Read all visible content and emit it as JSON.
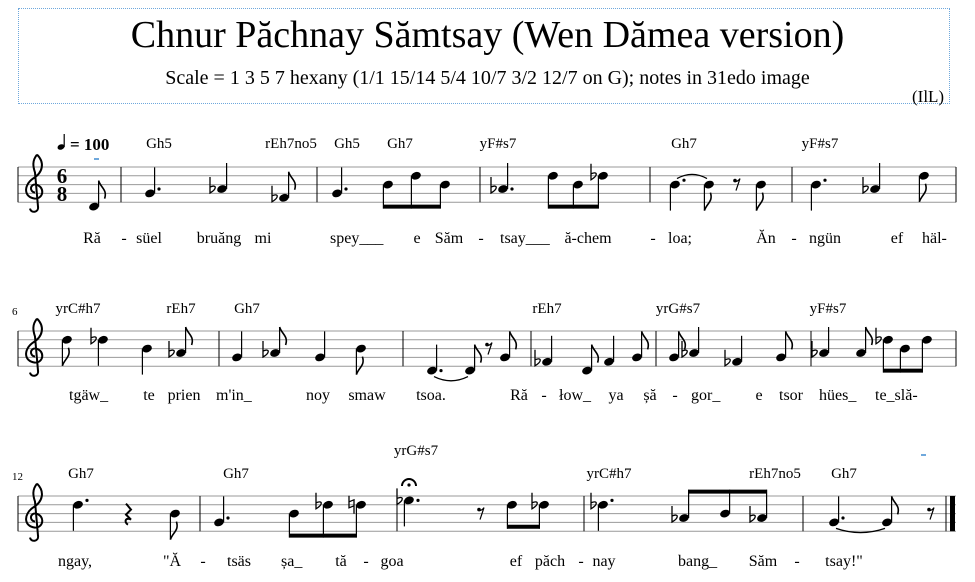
{
  "header": {
    "title": "Chnur Păchnay Sămtsay (Wen Dămea version)",
    "subtitle": "Scale = 1 3 5 7 hexany (1/1 15/14 5/4 10/7 3/2 12/7 on G); notes in 31edo image",
    "composer": "(IlL)"
  },
  "tempo": {
    "beat_icon": "quarter-note",
    "text": "= 100"
  },
  "time_signature": {
    "numerator": "6",
    "denominator": "8"
  },
  "clef": "treble",
  "colors": {
    "frame": "#6fa8dc",
    "ink": "#000000"
  },
  "systems": [
    {
      "measure_number": "",
      "chords": [
        "Gh5",
        "rEh7no5",
        "Gh5",
        "Gh7",
        "yF#s7",
        "Gh7",
        "yF#s7"
      ],
      "lyrics": [
        "Ră",
        "-",
        "süel",
        "bruăng",
        "mi",
        "spey___",
        "e",
        "Săm",
        "-",
        "tsay___",
        "ă-chem",
        "-",
        "loa;",
        "Ăn",
        "-",
        "ngün",
        "ef",
        "häl-"
      ],
      "notes": [
        {
          "p": "D4",
          "d": "8"
        },
        {
          "p": "G4",
          "d": "4.",
          "m": "dot"
        },
        {
          "p": "Ab4",
          "d": "4"
        },
        {
          "p": "Fb4",
          "d": "8"
        },
        {
          "p": "G4",
          "d": "4."
        },
        {
          "p": "B4",
          "d": "8"
        },
        {
          "p": "D5",
          "d": "8"
        },
        {
          "p": "B4",
          "d": "8"
        },
        {
          "p": "Ab4",
          "d": "4."
        },
        {
          "p": "D5",
          "d": "8"
        },
        {
          "p": "B4",
          "d": "8"
        },
        {
          "p": "Db5",
          "d": "8"
        },
        {
          "p": "B4",
          "d": "4."
        },
        {
          "p": "B4",
          "d": "8"
        },
        {
          "p": "rest",
          "d": "8"
        },
        {
          "p": "B4",
          "d": "8"
        },
        {
          "p": "B4",
          "d": "4."
        },
        {
          "p": "Ab4",
          "d": "4"
        },
        {
          "p": "D5",
          "d": "8"
        }
      ]
    },
    {
      "measure_number": "6",
      "chords": [
        "yrC#h7",
        "rEh7",
        "Gh7",
        "rEh7",
        "yrG#s7",
        "yF#s7"
      ],
      "lyrics": [
        "tgäw_",
        "te",
        "prien",
        "m'in_",
        "noy",
        "smaw",
        "tsoa.",
        "Ră",
        "-",
        "łow_",
        "ya",
        "șă",
        "-",
        "gor_",
        "e",
        "tsor",
        "hües_",
        "te_slă-"
      ],
      "notes": [
        {
          "p": "D5",
          "d": "8"
        },
        {
          "p": "Db5",
          "d": "4"
        },
        {
          "p": "B4",
          "d": "4"
        },
        {
          "p": "Ab4",
          "d": "8"
        },
        {
          "p": "G4",
          "d": "4"
        },
        {
          "p": "Ab4",
          "d": "8"
        },
        {
          "p": "G4",
          "d": "4"
        },
        {
          "p": "B4",
          "d": "8"
        },
        {
          "p": "D4",
          "d": "4."
        },
        {
          "p": "D4",
          "d": "8"
        },
        {
          "p": "rest",
          "d": "8"
        },
        {
          "p": "G4",
          "d": "8"
        },
        {
          "p": "Fb4",
          "d": "4"
        },
        {
          "p": "D4",
          "d": "8"
        },
        {
          "p": "F4",
          "d": "4"
        },
        {
          "p": "G4",
          "d": "8"
        },
        {
          "p": "G4",
          "d": "8"
        },
        {
          "p": "Ab4",
          "d": "4"
        },
        {
          "p": "Fb4",
          "d": "4"
        },
        {
          "p": "G4",
          "d": "8"
        },
        {
          "p": "Ab4",
          "d": "4"
        },
        {
          "p": "A4",
          "d": "8"
        },
        {
          "p": "Db5",
          "d": "8"
        },
        {
          "p": "B4",
          "d": "8"
        },
        {
          "p": "D5",
          "d": "8"
        }
      ]
    },
    {
      "measure_number": "12",
      "chords": [
        "Gh7",
        "Gh7",
        "yrG#s7",
        "yrC#h7",
        "rEh7no5",
        "Gh7"
      ],
      "lyrics": [
        "ngay,",
        "\"Ă",
        "-",
        "tsäs",
        "șa_",
        "tă",
        "-",
        "goa",
        "ef",
        "păch",
        "-",
        "nay",
        "bang_",
        "Săm",
        "-",
        "tsay!\""
      ],
      "notes": [
        {
          "p": "D5",
          "d": "4."
        },
        {
          "p": "rest",
          "d": "4"
        },
        {
          "p": "B4",
          "d": "8"
        },
        {
          "p": "G4",
          "d": "4."
        },
        {
          "p": "B4",
          "d": "8"
        },
        {
          "p": "Db5",
          "d": "8"
        },
        {
          "p": "D5n",
          "d": "8"
        },
        {
          "p": "Eb5",
          "d": "4.",
          "fermata": true
        },
        {
          "p": "rest",
          "d": "8"
        },
        {
          "p": "D5",
          "d": "8"
        },
        {
          "p": "Db5",
          "d": "8"
        },
        {
          "p": "Db5",
          "d": "4."
        },
        {
          "p": "Ab4",
          "d": "8"
        },
        {
          "p": "B4",
          "d": "8"
        },
        {
          "p": "Ab4",
          "d": "8"
        },
        {
          "p": "G4",
          "d": "4."
        },
        {
          "p": "G4",
          "d": "8"
        },
        {
          "p": "rest",
          "d": "8"
        }
      ]
    }
  ]
}
